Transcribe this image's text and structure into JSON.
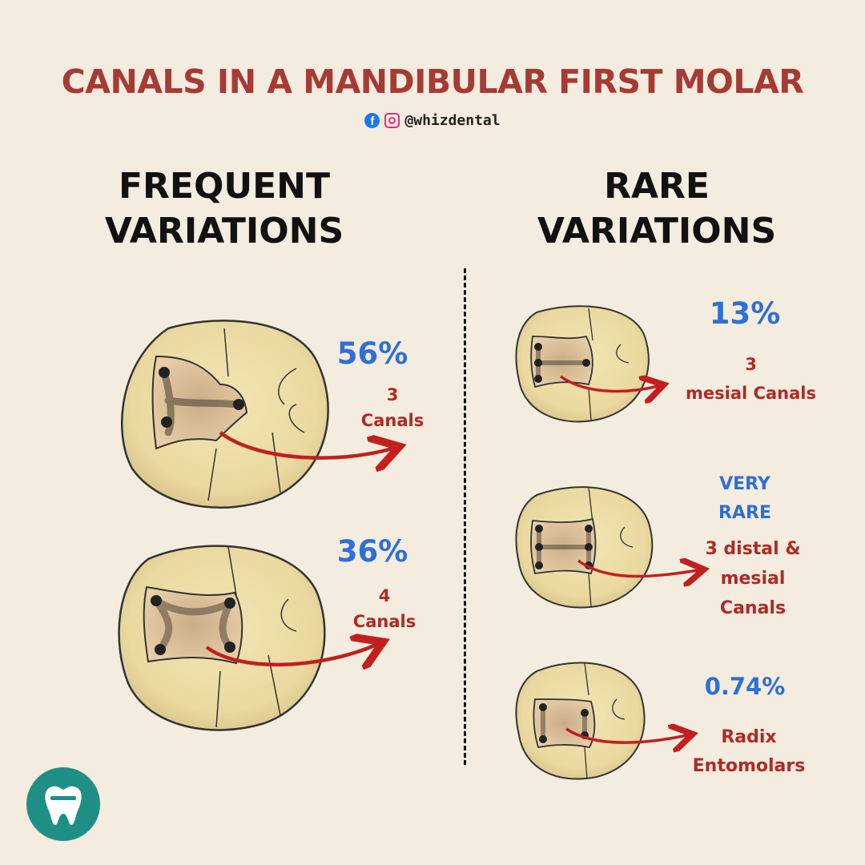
{
  "title": "CANALS IN A MANDIBULAR FIRST MOLAR",
  "social": {
    "handle": "@whizdental",
    "icons": [
      "facebook-icon",
      "instagram-icon"
    ]
  },
  "sections": {
    "frequent": {
      "heading_line1": "FREQUENT",
      "heading_line2": "VARIATIONS"
    },
    "rare": {
      "heading_line1": "RARE",
      "heading_line2": "VARIATIONS"
    }
  },
  "frequent_items": [
    {
      "percent": "56%",
      "label_line1": "3",
      "label_line2": "Canals"
    },
    {
      "percent": "36%",
      "label_line1": "4",
      "label_line2": "Canals"
    }
  ],
  "rare_items": [
    {
      "percent": "13%",
      "label_line1": "3",
      "label_line2": "mesial Canals"
    },
    {
      "percent_line1": "VERY",
      "percent_line2": "RARE",
      "label_line1": "3 distal &",
      "label_line2": "mesial",
      "label_line3": "Canals"
    },
    {
      "percent": "0.74%",
      "label_line1": "Radix",
      "label_line2": "Entomolars"
    }
  ],
  "colors": {
    "title": "#a63a35",
    "percent": "#2f6fd6",
    "label": "#b02a25",
    "arrow": "#c21f1f",
    "background": "#f4ecdf",
    "logo": "#1f8f86"
  }
}
